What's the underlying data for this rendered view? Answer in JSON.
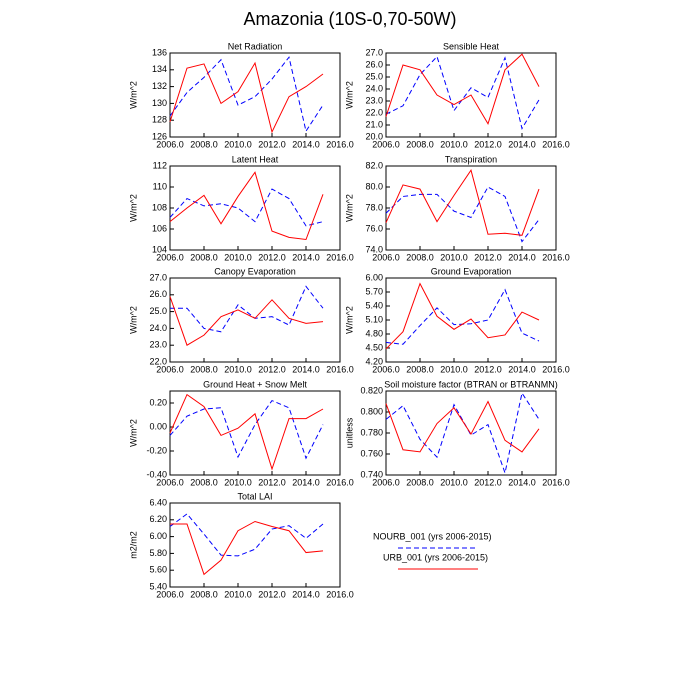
{
  "title": "Amazonia (10S-0,70-50W)",
  "chart_data": [
    {
      "type": "line",
      "title": "Net Radiation",
      "ylabel": "W/m^2",
      "x": [
        2006,
        2007,
        2008,
        2009,
        2010,
        2011,
        2012,
        2013,
        2014,
        2015
      ],
      "xlim": [
        2006,
        2016
      ],
      "xticks": [
        {
          "value": 2006,
          "label": "2006.0"
        },
        {
          "value": 2008,
          "label": "2008.0"
        },
        {
          "value": 2010,
          "label": "2010.0"
        },
        {
          "value": 2012,
          "label": "2012.0"
        },
        {
          "value": 2014,
          "label": "2014.0"
        },
        {
          "value": 2016,
          "label": "2016.0"
        }
      ],
      "ylim": [
        126,
        136
      ],
      "yticks": [
        126,
        128,
        130,
        132,
        134,
        136
      ],
      "series": [
        {
          "color": "#0000ff",
          "dash": true,
          "values": [
            128.5,
            131.3,
            133.1,
            135.2,
            129.8,
            130.8,
            132.9,
            135.5,
            126.7,
            129.8
          ]
        },
        {
          "color": "#ff0000",
          "dash": false,
          "values": [
            127.8,
            134.2,
            134.7,
            130.0,
            131.4,
            134.8,
            126.6,
            130.8,
            132.0,
            133.5
          ]
        }
      ]
    },
    {
      "type": "line",
      "title": "Sensible Heat",
      "ylabel": "W/m^2",
      "x": [
        2006,
        2007,
        2008,
        2009,
        2010,
        2011,
        2012,
        2013,
        2014,
        2015
      ],
      "xlim": [
        2006,
        2016
      ],
      "xticks": [
        {
          "value": 2006,
          "label": "2006.0"
        },
        {
          "value": 2008,
          "label": "2008.0"
        },
        {
          "value": 2010,
          "label": "2010.0"
        },
        {
          "value": 2012,
          "label": "2012.0"
        },
        {
          "value": 2014,
          "label": "2014.0"
        },
        {
          "value": 2016,
          "label": "2016.0"
        }
      ],
      "ylim": [
        20,
        27
      ],
      "yticks": [
        {
          "value": 20,
          "label": "20.0"
        },
        {
          "value": 21,
          "label": "21.0"
        },
        {
          "value": 22,
          "label": "22.0"
        },
        {
          "value": 23,
          "label": "23.0"
        },
        {
          "value": 24,
          "label": "24.0"
        },
        {
          "value": 25,
          "label": "25.0"
        },
        {
          "value": 26,
          "label": "26.0"
        },
        {
          "value": 27,
          "label": "27.0"
        }
      ],
      "series": [
        {
          "color": "#0000ff",
          "dash": true,
          "values": [
            21.9,
            22.6,
            25.2,
            26.7,
            22.2,
            24.1,
            23.3,
            26.6,
            20.7,
            23.1
          ]
        },
        {
          "color": "#ff0000",
          "dash": false,
          "values": [
            21.7,
            26.0,
            25.6,
            23.5,
            22.7,
            23.5,
            21.1,
            25.6,
            26.9,
            24.2
          ]
        }
      ]
    },
    {
      "type": "line",
      "title": "Latent Heat",
      "ylabel": "W/m^2",
      "x": [
        2006,
        2007,
        2008,
        2009,
        2010,
        2011,
        2012,
        2013,
        2014,
        2015
      ],
      "xlim": [
        2006,
        2016
      ],
      "xticks": [
        {
          "value": 2006,
          "label": "2006.0"
        },
        {
          "value": 2008,
          "label": "2008.0"
        },
        {
          "value": 2010,
          "label": "2010.0"
        },
        {
          "value": 2012,
          "label": "2012.0"
        },
        {
          "value": 2014,
          "label": "2014.0"
        },
        {
          "value": 2016,
          "label": "2016.0"
        }
      ],
      "ylim": [
        104,
        112
      ],
      "yticks": [
        104,
        106,
        108,
        110,
        112
      ],
      "series": [
        {
          "color": "#0000ff",
          "dash": true,
          "values": [
            107.1,
            108.9,
            108.2,
            108.4,
            108.0,
            106.7,
            109.8,
            108.9,
            106.3,
            106.7
          ]
        },
        {
          "color": "#ff0000",
          "dash": false,
          "values": [
            106.7,
            108.0,
            109.2,
            106.5,
            109.1,
            111.4,
            105.8,
            105.2,
            105.0,
            109.3
          ]
        }
      ]
    },
    {
      "type": "line",
      "title": "Transpiration",
      "ylabel": "W/m^2",
      "x": [
        2006,
        2007,
        2008,
        2009,
        2010,
        2011,
        2012,
        2013,
        2014,
        2015
      ],
      "xlim": [
        2006,
        2016
      ],
      "xticks": [
        {
          "value": 2006,
          "label": "2006.0"
        },
        {
          "value": 2008,
          "label": "2008.0"
        },
        {
          "value": 2010,
          "label": "2010.0"
        },
        {
          "value": 2012,
          "label": "2012.0"
        },
        {
          "value": 2014,
          "label": "2014.0"
        },
        {
          "value": 2016,
          "label": "2016.0"
        }
      ],
      "ylim": [
        74,
        82
      ],
      "yticks": [
        {
          "value": 74,
          "label": "74.0"
        },
        {
          "value": 76,
          "label": "76.0"
        },
        {
          "value": 78,
          "label": "78.0"
        },
        {
          "value": 80,
          "label": "80.0"
        },
        {
          "value": 82,
          "label": "82.0"
        }
      ],
      "series": [
        {
          "color": "#0000ff",
          "dash": true,
          "values": [
            77.5,
            79.1,
            79.3,
            79.3,
            77.7,
            77.1,
            80.0,
            79.1,
            74.8,
            76.9
          ]
        },
        {
          "color": "#ff0000",
          "dash": false,
          "values": [
            76.6,
            80.2,
            79.8,
            76.7,
            79.2,
            81.6,
            75.5,
            75.6,
            75.4,
            79.8
          ]
        }
      ]
    },
    {
      "type": "line",
      "title": "Canopy Evaporation",
      "ylabel": "W/m^2",
      "x": [
        2006,
        2007,
        2008,
        2009,
        2010,
        2011,
        2012,
        2013,
        2014,
        2015
      ],
      "xlim": [
        2006,
        2016
      ],
      "xticks": [
        {
          "value": 2006,
          "label": "2006.0"
        },
        {
          "value": 2008,
          "label": "2008.0"
        },
        {
          "value": 2010,
          "label": "2010.0"
        },
        {
          "value": 2012,
          "label": "2012.0"
        },
        {
          "value": 2014,
          "label": "2014.0"
        },
        {
          "value": 2016,
          "label": "2016.0"
        }
      ],
      "ylim": [
        22,
        27
      ],
      "yticks": [
        {
          "value": 22,
          "label": "22.0"
        },
        {
          "value": 23,
          "label": "23.0"
        },
        {
          "value": 24,
          "label": "24.0"
        },
        {
          "value": 25,
          "label": "25.0"
        },
        {
          "value": 26,
          "label": "26.0"
        },
        {
          "value": 27,
          "label": "27.0"
        }
      ],
      "series": [
        {
          "color": "#0000ff",
          "dash": true,
          "values": [
            25.2,
            25.2,
            24.0,
            23.8,
            25.4,
            24.6,
            24.7,
            24.2,
            26.5,
            25.2
          ]
        },
        {
          "color": "#ff0000",
          "dash": false,
          "values": [
            25.9,
            23.0,
            23.6,
            24.7,
            25.1,
            24.6,
            25.7,
            24.6,
            24.3,
            24.4
          ]
        }
      ]
    },
    {
      "type": "line",
      "title": "Ground Evaporation",
      "ylabel": "W/m^2",
      "x": [
        2006,
        2007,
        2008,
        2009,
        2010,
        2011,
        2012,
        2013,
        2014,
        2015
      ],
      "xlim": [
        2006,
        2016
      ],
      "xticks": [
        {
          "value": 2006,
          "label": "2006.0"
        },
        {
          "value": 2008,
          "label": "2008.0"
        },
        {
          "value": 2010,
          "label": "2010.0"
        },
        {
          "value": 2012,
          "label": "2012.0"
        },
        {
          "value": 2014,
          "label": "2014.0"
        },
        {
          "value": 2016,
          "label": "2016.0"
        }
      ],
      "ylim": [
        4.2,
        6.0
      ],
      "yticks": [
        {
          "value": 4.2,
          "label": "4.20"
        },
        {
          "value": 4.5,
          "label": "4.50"
        },
        {
          "value": 4.8,
          "label": "4.80"
        },
        {
          "value": 5.1,
          "label": "5.10"
        },
        {
          "value": 5.4,
          "label": "5.40"
        },
        {
          "value": 5.7,
          "label": "5.70"
        },
        {
          "value": 6.0,
          "label": "6.00"
        }
      ],
      "series": [
        {
          "color": "#0000ff",
          "dash": true,
          "values": [
            4.62,
            4.58,
            4.98,
            5.36,
            5.0,
            5.02,
            5.1,
            5.75,
            4.82,
            4.65
          ]
        },
        {
          "color": "#ff0000",
          "dash": false,
          "values": [
            4.48,
            4.85,
            5.88,
            5.18,
            4.9,
            5.12,
            4.72,
            4.78,
            5.27,
            5.1
          ]
        }
      ]
    },
    {
      "type": "line",
      "title": "Ground Heat + Snow Melt",
      "ylabel": "W/m^2",
      "x": [
        2006,
        2007,
        2008,
        2009,
        2010,
        2011,
        2012,
        2013,
        2014,
        2015
      ],
      "xlim": [
        2006,
        2016
      ],
      "xticks": [
        {
          "value": 2006,
          "label": "2006.0"
        },
        {
          "value": 2008,
          "label": "2008.0"
        },
        {
          "value": 2010,
          "label": "2010.0"
        },
        {
          "value": 2012,
          "label": "2012.0"
        },
        {
          "value": 2014,
          "label": "2014.0"
        },
        {
          "value": 2016,
          "label": "2016.0"
        }
      ],
      "ylim": [
        -0.4,
        0.3
      ],
      "yticks": [
        {
          "value": -0.4,
          "label": "-0.40"
        },
        {
          "value": -0.2,
          "label": "-0.20"
        },
        {
          "value": 0,
          "label": "0.00"
        },
        {
          "value": 0.2,
          "label": "0.20"
        }
      ],
      "series": [
        {
          "color": "#0000ff",
          "dash": true,
          "values": [
            -0.07,
            0.09,
            0.15,
            0.16,
            -0.25,
            0.02,
            0.22,
            0.16,
            -0.26,
            0.02
          ]
        },
        {
          "color": "#ff0000",
          "dash": false,
          "values": [
            -0.05,
            0.27,
            0.17,
            -0.07,
            -0.01,
            0.11,
            -0.35,
            0.07,
            0.07,
            0.15
          ]
        }
      ]
    },
    {
      "type": "line",
      "title": "Soil moisture factor (BTRAN or BTRANMN)",
      "ylabel": "unitless",
      "x": [
        2006,
        2007,
        2008,
        2009,
        2010,
        2011,
        2012,
        2013,
        2014,
        2015
      ],
      "xlim": [
        2006,
        2016
      ],
      "xticks": [
        {
          "value": 2006,
          "label": "2006.0"
        },
        {
          "value": 2008,
          "label": "2008.0"
        },
        {
          "value": 2010,
          "label": "2010.0"
        },
        {
          "value": 2012,
          "label": "2012.0"
        },
        {
          "value": 2014,
          "label": "2014.0"
        },
        {
          "value": 2016,
          "label": "2016.0"
        }
      ],
      "ylim": [
        0.74,
        0.82
      ],
      "yticks": [
        {
          "value": 0.74,
          "label": "0.740"
        },
        {
          "value": 0.76,
          "label": "0.760"
        },
        {
          "value": 0.78,
          "label": "0.780"
        },
        {
          "value": 0.8,
          "label": "0.800"
        },
        {
          "value": 0.82,
          "label": "0.820"
        }
      ],
      "series": [
        {
          "color": "#0000ff",
          "dash": true,
          "values": [
            0.793,
            0.806,
            0.774,
            0.757,
            0.807,
            0.778,
            0.788,
            0.742,
            0.818,
            0.793
          ]
        },
        {
          "color": "#ff0000",
          "dash": false,
          "values": [
            0.808,
            0.764,
            0.762,
            0.789,
            0.804,
            0.779,
            0.81,
            0.773,
            0.762,
            0.784
          ]
        }
      ]
    },
    {
      "type": "line",
      "title": "Total LAI",
      "ylabel": "m2/m2",
      "x": [
        2006,
        2007,
        2008,
        2009,
        2010,
        2011,
        2012,
        2013,
        2014,
        2015
      ],
      "xlim": [
        2006,
        2016
      ],
      "xticks": [
        {
          "value": 2006,
          "label": "2006.0"
        },
        {
          "value": 2008,
          "label": "2008.0"
        },
        {
          "value": 2010,
          "label": "2010.0"
        },
        {
          "value": 2012,
          "label": "2012.0"
        },
        {
          "value": 2014,
          "label": "2014.0"
        },
        {
          "value": 2016,
          "label": "2016.0"
        }
      ],
      "ylim": [
        5.4,
        6.4
      ],
      "yticks": [
        {
          "value": 5.4,
          "label": "5.40"
        },
        {
          "value": 5.6,
          "label": "5.60"
        },
        {
          "value": 5.8,
          "label": "5.80"
        },
        {
          "value": 6.0,
          "label": "6.00"
        },
        {
          "value": 6.2,
          "label": "6.20"
        },
        {
          "value": 6.4,
          "label": "6.40"
        }
      ],
      "series": [
        {
          "name": "NOURB_001 (yrs 2006-2015)",
          "color": "#0000ff",
          "dash": true,
          "values": [
            6.12,
            6.27,
            6.03,
            5.78,
            5.77,
            5.85,
            6.09,
            6.13,
            5.98,
            6.15
          ]
        },
        {
          "name": "URB_001 (yrs 2006-2015)",
          "color": "#ff0000",
          "dash": false,
          "values": [
            6.15,
            6.15,
            5.55,
            5.72,
            6.07,
            6.18,
            6.12,
            6.07,
            5.81,
            5.83
          ]
        }
      ]
    }
  ]
}
